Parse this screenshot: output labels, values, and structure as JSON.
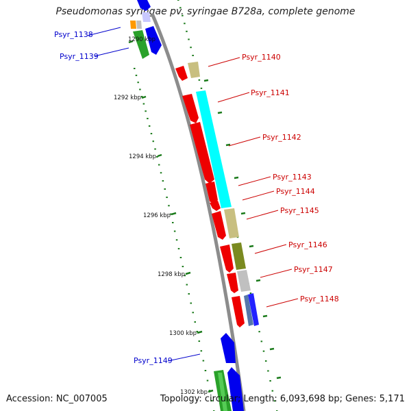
{
  "title": "Pseudomonas syringae pv. syringae B728a, complete genome",
  "footer": {
    "accession": "Accession: NC_007005",
    "summary": "Topology: circular; Length: 6,093,698 bp; Genes: 5,171"
  },
  "colors": {
    "backbone": "#8c8c8c",
    "tick": "#1a7a1a",
    "label_forward": "#0000cc",
    "label_reverse": "#cc0000"
  },
  "ticks": [
    {
      "label": "1290 kbp"
    },
    {
      "label": "1292 kbp"
    },
    {
      "label": "1294 kbp"
    },
    {
      "label": "1296 kbp"
    },
    {
      "label": "1298 kbp"
    },
    {
      "label": "1300 kbp"
    },
    {
      "label": "1302 kbp"
    }
  ],
  "genes": [
    {
      "name": "Psyr_1138",
      "strand": "forward",
      "color": "blue"
    },
    {
      "name": "Psyr_1139",
      "strand": "forward",
      "color": "blue"
    },
    {
      "name": "Psyr_1140",
      "strand": "reverse",
      "color": "red"
    },
    {
      "name": "Psyr_1141",
      "strand": "reverse",
      "color": "red"
    },
    {
      "name": "Psyr_1142",
      "strand": "reverse",
      "color": "red"
    },
    {
      "name": "Psyr_1143",
      "strand": "reverse",
      "color": "red"
    },
    {
      "name": "Psyr_1144",
      "strand": "reverse",
      "color": "red"
    },
    {
      "name": "Psyr_1145",
      "strand": "reverse",
      "color": "red"
    },
    {
      "name": "Psyr_1146",
      "strand": "reverse",
      "color": "red"
    },
    {
      "name": "Psyr_1147",
      "strand": "reverse",
      "color": "red"
    },
    {
      "name": "Psyr_1148",
      "strand": "reverse",
      "color": "red"
    },
    {
      "name": "Psyr_1149",
      "strand": "forward",
      "color": "blue"
    }
  ]
}
